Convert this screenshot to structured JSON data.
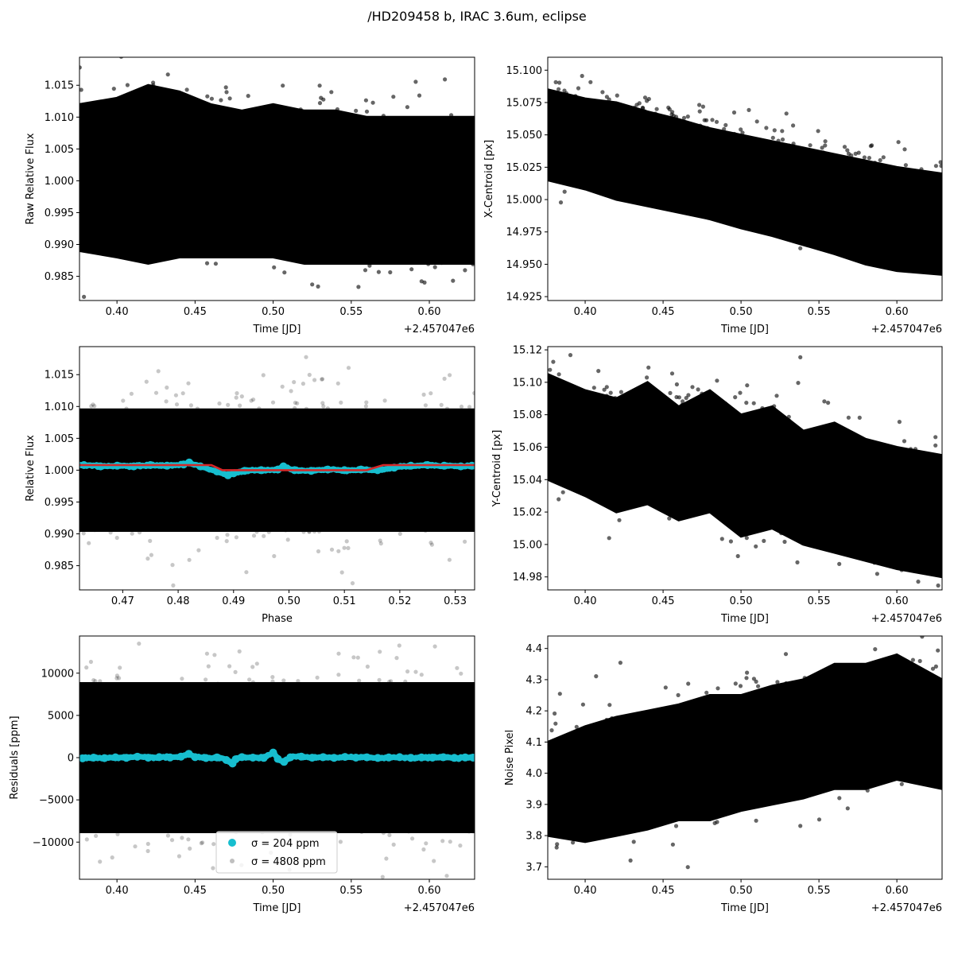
{
  "figure": {
    "title": "/HD209458 b, IRAC 3.6um, eclipse"
  },
  "chart_data": [
    {
      "panel": "raw-flux",
      "type": "scatter",
      "xlabel": "Time [JD]",
      "ylabel": "Raw Relative Flux",
      "x_offset_label": "+2.457047e6",
      "xlim": [
        0.376,
        0.629
      ],
      "ylim": [
        0.9812,
        1.0194
      ],
      "xticks": [
        0.4,
        0.45,
        0.5,
        0.55,
        0.6
      ],
      "xtick_labels": [
        "0.40",
        "0.45",
        "0.50",
        "0.55",
        "0.60"
      ],
      "yticks": [
        0.985,
        0.99,
        0.995,
        1.0,
        1.005,
        1.01,
        1.015
      ],
      "ytick_labels": [
        "0.985",
        "0.990",
        "0.995",
        "1.000",
        "1.005",
        "1.010",
        "1.015"
      ],
      "colors": {
        "points": "#000000"
      },
      "series": [
        {
          "kind": "core-band",
          "x": [
            0.376,
            0.4,
            0.42,
            0.44,
            0.46,
            0.48,
            0.5,
            0.52,
            0.54,
            0.56,
            0.58,
            0.6,
            0.629
          ],
          "upper": [
            1.012,
            1.013,
            1.015,
            1.014,
            1.012,
            1.011,
            1.012,
            1.011,
            1.011,
            1.01,
            1.01,
            1.01,
            1.01
          ],
          "lower": [
            0.989,
            0.988,
            0.987,
            0.988,
            0.988,
            0.988,
            0.988,
            0.987,
            0.987,
            0.987,
            0.987,
            0.987,
            0.987
          ]
        },
        {
          "kind": "points",
          "n": 1000,
          "center": 1.0,
          "sigma": 0.0058,
          "trend": [
            0.002,
            -0.001
          ]
        }
      ]
    },
    {
      "panel": "x-centroid",
      "type": "scatter",
      "xlabel": "Time [JD]",
      "ylabel": "X-Centroid [px]",
      "x_offset_label": "+2.457047e6",
      "xlim": [
        0.376,
        0.629
      ],
      "ylim": [
        14.922,
        15.11
      ],
      "xticks": [
        0.4,
        0.45,
        0.5,
        0.55,
        0.6
      ],
      "xtick_labels": [
        "0.40",
        "0.45",
        "0.50",
        "0.55",
        "0.60"
      ],
      "yticks": [
        14.925,
        14.95,
        14.975,
        15.0,
        15.025,
        15.05,
        15.075,
        15.1
      ],
      "ytick_labels": [
        "14.925",
        "14.950",
        "14.975",
        "15.000",
        "15.025",
        "15.050",
        "15.075",
        "15.100"
      ],
      "colors": {
        "points": "#000000"
      },
      "series": [
        {
          "kind": "core-band",
          "x": [
            0.376,
            0.4,
            0.42,
            0.44,
            0.46,
            0.48,
            0.5,
            0.52,
            0.54,
            0.56,
            0.58,
            0.6,
            0.629
          ],
          "upper": [
            15.085,
            15.078,
            15.075,
            15.068,
            15.062,
            15.055,
            15.05,
            15.045,
            15.04,
            15.035,
            15.03,
            15.025,
            15.02
          ],
          "lower": [
            15.015,
            15.008,
            15.0,
            14.995,
            14.99,
            14.985,
            14.978,
            14.972,
            14.965,
            14.958,
            14.95,
            14.945,
            14.942
          ]
        },
        {
          "kind": "points",
          "n": 900,
          "center": 15.04,
          "sigma": 0.018,
          "trend": [
            0.02,
            -0.05
          ]
        }
      ]
    },
    {
      "panel": "phase-flux",
      "type": "scatter",
      "xlabel": "Phase",
      "ylabel": "Relative Flux",
      "xlim": [
        0.4622,
        0.5335
      ],
      "ylim": [
        0.9812,
        1.0194
      ],
      "xticks": [
        0.47,
        0.48,
        0.49,
        0.5,
        0.51,
        0.52,
        0.53
      ],
      "xtick_labels": [
        "0.47",
        "0.48",
        "0.49",
        "0.50",
        "0.51",
        "0.52",
        "0.53"
      ],
      "yticks": [
        0.985,
        0.99,
        0.995,
        1.0,
        1.005,
        1.01,
        1.015
      ],
      "ytick_labels": [
        "0.985",
        "0.990",
        "0.995",
        "1.000",
        "1.005",
        "1.010",
        "1.015"
      ],
      "colors": {
        "points": "#000000",
        "binned": "#17becf",
        "model": "#d62728"
      },
      "series": [
        {
          "kind": "core-band",
          "x": [
            0.4622,
            0.5335
          ],
          "upper": [
            1.0095,
            1.0095
          ],
          "lower": [
            0.9905,
            0.9905
          ]
        },
        {
          "kind": "points",
          "n": 1200,
          "center": 1.0005,
          "sigma": 0.0055,
          "trend": [
            0,
            0
          ]
        },
        {
          "kind": "binned",
          "x": [
            0.463,
            0.466,
            0.469,
            0.472,
            0.475,
            0.478,
            0.481,
            0.482,
            0.484,
            0.487,
            0.489,
            0.49,
            0.492,
            0.495,
            0.498,
            0.499,
            0.501,
            0.504,
            0.507,
            0.51,
            0.513,
            0.516,
            0.519,
            0.522,
            0.525,
            0.528,
            0.531,
            0.533
          ],
          "y": [
            1.0008,
            1.0006,
            1.0007,
            1.0006,
            1.0008,
            1.0007,
            1.0009,
            1.0012,
            1.0006,
            0.9998,
            0.9992,
            0.9995,
            0.9999,
            1.0,
            1.0001,
            1.0006,
            1.0,
            0.9999,
            1.0001,
            1.0,
            1.0001,
            1.0,
            1.0004,
            1.0007,
            1.0008,
            1.0007,
            1.0006,
            1.0007
          ]
        },
        {
          "kind": "model",
          "x": [
            0.4622,
            0.486,
            0.488,
            0.514,
            0.517,
            0.5335
          ],
          "y": [
            1.0008,
            1.0008,
            1.0,
            1.0,
            1.0008,
            1.0008
          ]
        }
      ]
    },
    {
      "panel": "y-centroid",
      "type": "scatter",
      "xlabel": "Time [JD]",
      "ylabel": "Y-Centroid [px]",
      "x_offset_label": "+2.457047e6",
      "xlim": [
        0.376,
        0.629
      ],
      "ylim": [
        14.972,
        15.122
      ],
      "xticks": [
        0.4,
        0.45,
        0.5,
        0.55,
        0.6
      ],
      "xtick_labels": [
        "0.40",
        "0.45",
        "0.50",
        "0.55",
        "0.60"
      ],
      "yticks": [
        14.98,
        15.0,
        15.02,
        15.04,
        15.06,
        15.08,
        15.1,
        15.12
      ],
      "ytick_labels": [
        "14.98",
        "15.00",
        "15.02",
        "15.04",
        "15.06",
        "15.08",
        "15.10",
        "15.12"
      ],
      "colors": {
        "points": "#000000"
      },
      "series": [
        {
          "kind": "core-band",
          "x": [
            0.376,
            0.4,
            0.42,
            0.44,
            0.46,
            0.48,
            0.5,
            0.52,
            0.54,
            0.56,
            0.58,
            0.6,
            0.629
          ],
          "upper": [
            15.105,
            15.095,
            15.09,
            15.1,
            15.085,
            15.095,
            15.08,
            15.085,
            15.07,
            15.075,
            15.065,
            15.06,
            15.055
          ],
          "lower": [
            15.04,
            15.03,
            15.02,
            15.025,
            15.015,
            15.02,
            15.005,
            15.01,
            15.0,
            14.995,
            14.99,
            14.985,
            14.98
          ]
        },
        {
          "kind": "points",
          "n": 900,
          "center": 15.05,
          "sigma": 0.02,
          "trend": [
            0.025,
            -0.03
          ]
        }
      ]
    },
    {
      "panel": "residuals",
      "type": "scatter",
      "xlabel": "Time [JD]",
      "ylabel": "Residuals [ppm]",
      "x_offset_label": "+2.457047e6",
      "xlim": [
        0.376,
        0.629
      ],
      "ylim": [
        -14400,
        14400
      ],
      "xticks": [
        0.4,
        0.45,
        0.5,
        0.55,
        0.6
      ],
      "xtick_labels": [
        "0.40",
        "0.45",
        "0.50",
        "0.55",
        "0.60"
      ],
      "yticks": [
        -10000,
        -5000,
        0,
        5000,
        10000
      ],
      "ytick_labels": [
        "−10000",
        "−5000",
        "0",
        "5000",
        "10000"
      ],
      "colors": {
        "points": "#000000",
        "binned": "#17becf"
      },
      "legend": {
        "location": "lower-center",
        "entries": [
          "σ = 204 ppm",
          "σ = 4808 ppm"
        ]
      },
      "series": [
        {
          "kind": "core-band",
          "x": [
            0.376,
            0.629
          ],
          "upper": [
            8800,
            8800
          ],
          "lower": [
            -8800,
            -8800
          ]
        },
        {
          "kind": "points",
          "n": 1200,
          "center": 0,
          "sigma": 4808,
          "trend": [
            0,
            0
          ]
        },
        {
          "kind": "binned",
          "x": [
            0.378,
            0.385,
            0.392,
            0.399,
            0.406,
            0.413,
            0.42,
            0.427,
            0.434,
            0.441,
            0.446,
            0.45,
            0.457,
            0.464,
            0.47,
            0.474,
            0.476,
            0.48,
            0.487,
            0.494,
            0.5,
            0.503,
            0.507,
            0.511,
            0.518,
            0.525,
            0.532,
            0.539,
            0.546,
            0.553,
            0.56,
            0.567,
            0.574,
            0.581,
            0.588,
            0.595,
            0.602,
            0.609,
            0.616,
            0.623,
            0.628
          ],
          "y": [
            -80,
            0,
            -60,
            40,
            -20,
            100,
            -10,
            60,
            20,
            120,
            450,
            60,
            -50,
            30,
            -280,
            -700,
            -200,
            60,
            0,
            -30,
            600,
            -150,
            -500,
            40,
            120,
            -10,
            60,
            -20,
            80,
            0,
            40,
            -40,
            20,
            60,
            -20,
            30,
            0,
            50,
            -30,
            20,
            0
          ]
        }
      ]
    },
    {
      "panel": "noise-pixel",
      "type": "scatter",
      "xlabel": "Time [JD]",
      "ylabel": "Noise Pixel",
      "x_offset_label": "+2.457047e6",
      "xlim": [
        0.376,
        0.629
      ],
      "ylim": [
        3.66,
        4.44
      ],
      "xticks": [
        0.4,
        0.45,
        0.5,
        0.55,
        0.6
      ],
      "xtick_labels": [
        "0.40",
        "0.45",
        "0.50",
        "0.55",
        "0.60"
      ],
      "yticks": [
        3.7,
        3.8,
        3.9,
        4.0,
        4.1,
        4.2,
        4.3,
        4.4
      ],
      "ytick_labels": [
        "3.7",
        "3.8",
        "3.9",
        "4.0",
        "4.1",
        "4.2",
        "4.3",
        "4.4"
      ],
      "colors": {
        "points": "#000000"
      },
      "series": [
        {
          "kind": "core-band",
          "x": [
            0.376,
            0.4,
            0.42,
            0.44,
            0.46,
            0.48,
            0.5,
            0.52,
            0.54,
            0.56,
            0.58,
            0.6,
            0.629
          ],
          "upper": [
            4.1,
            4.15,
            4.18,
            4.2,
            4.22,
            4.25,
            4.25,
            4.28,
            4.3,
            4.35,
            4.35,
            4.38,
            4.3
          ],
          "lower": [
            3.8,
            3.78,
            3.8,
            3.82,
            3.85,
            3.85,
            3.88,
            3.9,
            3.92,
            3.95,
            3.95,
            3.98,
            3.95
          ]
        },
        {
          "kind": "points",
          "n": 900,
          "center": 4.05,
          "sigma": 0.1,
          "trend": [
            -0.1,
            0.15
          ]
        }
      ]
    }
  ]
}
